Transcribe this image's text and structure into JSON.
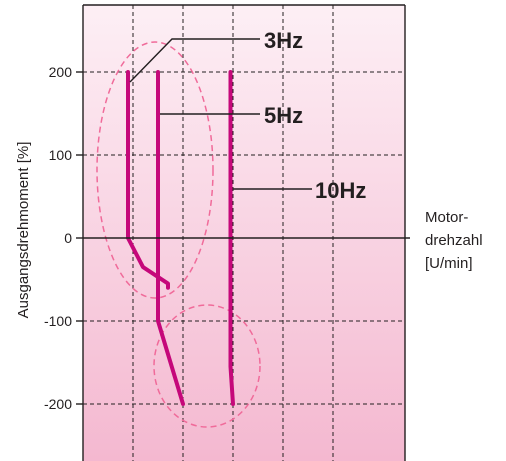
{
  "chart_data": {
    "type": "line",
    "title": "",
    "xlabel": "Motor-drehzahl [U/min]",
    "xlabel_lines": [
      "Motor-",
      "drehzahl",
      "[U/min]"
    ],
    "ylabel": "Ausgangsdrehmoment [%]",
    "ylim": [
      -250,
      250
    ],
    "yticks": [
      200,
      100,
      0,
      -100,
      -200
    ],
    "ytick_labels": [
      "200",
      "100",
      "0",
      "-100",
      "-200"
    ],
    "grid": true,
    "legend": "none",
    "series": [
      {
        "name": "3Hz",
        "points": [
          [
            0.9,
            200
          ],
          [
            0.9,
            0
          ],
          [
            1.2,
            -35
          ],
          [
            1.7,
            -55
          ],
          [
            1.7,
            -60
          ]
        ]
      },
      {
        "name": "5Hz",
        "points": [
          [
            1.5,
            200
          ],
          [
            1.5,
            -100
          ],
          [
            2.0,
            -200
          ]
        ]
      },
      {
        "name": "10Hz",
        "points": [
          [
            2.95,
            200
          ],
          [
            2.95,
            -155
          ],
          [
            3.0,
            -200
          ]
        ]
      }
    ],
    "annotations": [
      "3Hz",
      "5Hz",
      "10Hz"
    ]
  },
  "colors": {
    "series": "#c5087a",
    "ellipse": "#f06b9a",
    "background_top": "#fdeff5",
    "background_bottom": "#f4b8d0",
    "grid": "#231f20"
  }
}
